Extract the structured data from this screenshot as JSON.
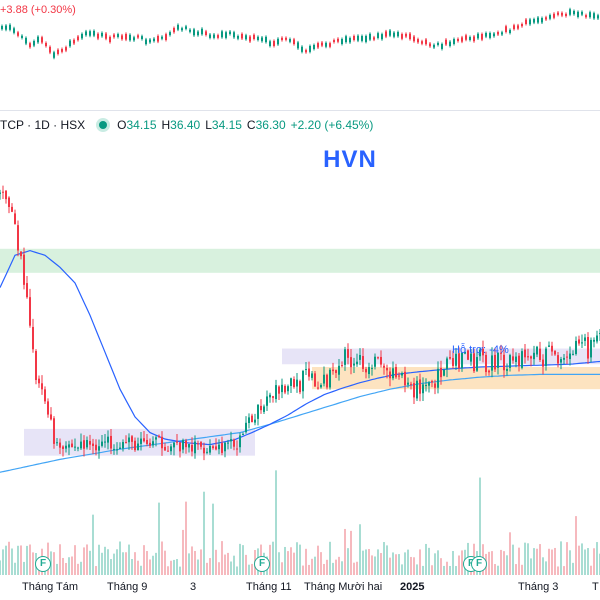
{
  "top_panel": {
    "change_text": "+3.88 (+0.30%)"
  },
  "legend": {
    "symbol": "TCP · 1D · HSX",
    "open_label": "O",
    "open": "34.15",
    "high_label": "H",
    "high": "36.40",
    "low_label": "L",
    "low": "34.15",
    "close_label": "C",
    "close": "36.30",
    "change": "+2.20 (+6.45%)"
  },
  "title": "HVN",
  "annotation": "Hỗ trợ: -4%",
  "colors": {
    "up": "#089981",
    "down": "#f23645",
    "ma_fast": "#2962ff",
    "ma_slow": "#42a5f5",
    "resistance_zone": "#d8f1de",
    "range_box": "#e7e4f7",
    "support_zone": "#fde3c0",
    "title": "#2962ff"
  },
  "x_axis": {
    "ticks": [
      {
        "label": "Tháng Tám",
        "bold": false
      },
      {
        "label": "Tháng 9",
        "bold": false
      },
      {
        "label": "3",
        "bold": false
      },
      {
        "label": "Tháng 11",
        "bold": false
      },
      {
        "label": "Tháng Mười hai",
        "bold": false
      },
      {
        "label": "2025",
        "bold": true
      },
      {
        "label": "Tháng 3",
        "bold": false
      },
      {
        "label": "T",
        "bold": false
      }
    ]
  },
  "event_markers": {
    "label": "F",
    "count": 4
  },
  "chart_data": {
    "type": "candlestick",
    "title": "HVN",
    "x_start": "Tháng Tám",
    "x_end": "Tháng 3",
    "price_path": [
      [
        0,
        52.0
      ],
      [
        4,
        50.5
      ],
      [
        8,
        43.0
      ],
      [
        12,
        32.0
      ],
      [
        16,
        29.0
      ],
      [
        18,
        25.5
      ],
      [
        24,
        24.8
      ],
      [
        30,
        25.0
      ],
      [
        38,
        25.3
      ],
      [
        46,
        25.0
      ],
      [
        54,
        25.2
      ],
      [
        62,
        24.6
      ],
      [
        70,
        24.9
      ],
      [
        76,
        24.7
      ],
      [
        80,
        25.4
      ],
      [
        86,
        29.0
      ],
      [
        90,
        31.0
      ],
      [
        96,
        31.6
      ],
      [
        102,
        32.0
      ],
      [
        108,
        31.4
      ],
      [
        112,
        34.0
      ],
      [
        118,
        34.6
      ],
      [
        126,
        33.6
      ],
      [
        132,
        32.0
      ],
      [
        138,
        31.0
      ],
      [
        146,
        32.4
      ],
      [
        152,
        33.8
      ],
      [
        160,
        34.0
      ],
      [
        168,
        34.2
      ],
      [
        176,
        34.6
      ],
      [
        184,
        34.8
      ],
      [
        194,
        35.2
      ],
      [
        200,
        36.3
      ]
    ],
    "ma_fast": [
      [
        0,
        42.0
      ],
      [
        5,
        45.5
      ],
      [
        10,
        46.0
      ],
      [
        15,
        45.5
      ],
      [
        20,
        44.2
      ],
      [
        25,
        42.5
      ],
      [
        30,
        39.0
      ],
      [
        35,
        35.0
      ],
      [
        40,
        31.0
      ],
      [
        45,
        28.0
      ],
      [
        50,
        26.3
      ],
      [
        55,
        25.6
      ],
      [
        62,
        25.2
      ],
      [
        70,
        25.0
      ],
      [
        78,
        25.5
      ],
      [
        84,
        26.3
      ],
      [
        90,
        27.2
      ],
      [
        96,
        28.2
      ],
      [
        102,
        29.4
      ],
      [
        108,
        30.4
      ],
      [
        114,
        31.1
      ],
      [
        120,
        31.7
      ],
      [
        126,
        32.2
      ],
      [
        132,
        32.6
      ],
      [
        140,
        32.9
      ],
      [
        150,
        33.2
      ],
      [
        160,
        33.4
      ],
      [
        170,
        33.5
      ],
      [
        180,
        33.6
      ],
      [
        190,
        33.7
      ],
      [
        200,
        34.0
      ]
    ],
    "ma_slow": [
      [
        0,
        22.0
      ],
      [
        20,
        23.4
      ],
      [
        40,
        24.5
      ],
      [
        60,
        25.4
      ],
      [
        80,
        26.3
      ],
      [
        90,
        27.2
      ],
      [
        100,
        28.2
      ],
      [
        110,
        29.2
      ],
      [
        120,
        30.2
      ],
      [
        130,
        31.0
      ],
      [
        140,
        31.6
      ],
      [
        150,
        32.0
      ],
      [
        160,
        32.3
      ],
      [
        170,
        32.5
      ],
      [
        180,
        32.6
      ],
      [
        200,
        32.6
      ]
    ],
    "zones": {
      "resistance_top": 46.2,
      "resistance_bottom": 43.6,
      "range_top": 35.4,
      "range_bottom": 33.7,
      "support_top": 33.4,
      "support_bottom": 31.0,
      "consolidation_top": 26.7,
      "consolidation_bottom": 23.8
    },
    "support_label": "Hỗ trợ: -4%",
    "volume_profile": "low-with-spikes",
    "grid": false,
    "legend": "top-left"
  }
}
